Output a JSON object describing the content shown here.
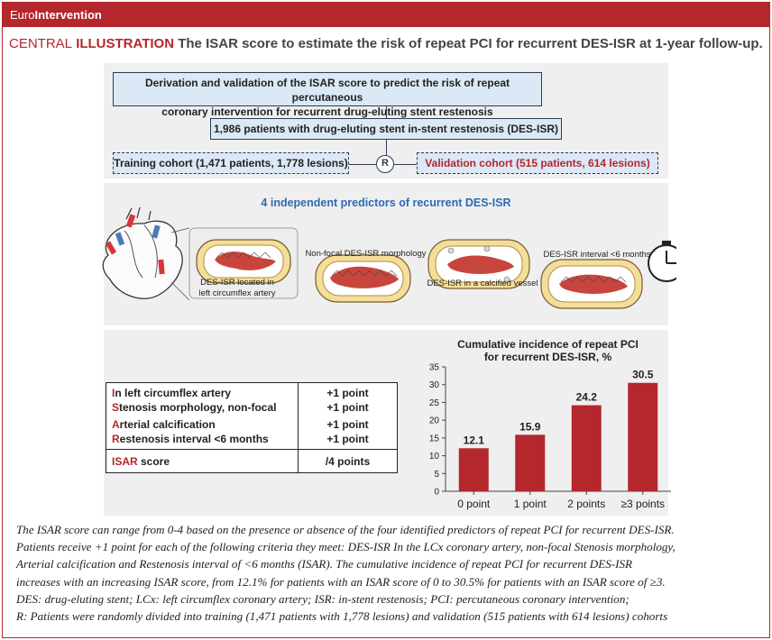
{
  "header": {
    "journal_prefix": "Euro",
    "journal_suffix": "Intervention"
  },
  "headline": {
    "label1": "CENTRAL",
    "label2": "ILLUSTRATION",
    "text": "The ISAR score to estimate the risk of repeat PCI for recurrent DES-ISR at 1-year follow-up."
  },
  "flow": {
    "title_line1": "Derivation and validation of the ISAR score to predict the risk of repeat percutaneous",
    "title_line2": "coronary intervention for recurrent drug-eluting stent restenosis",
    "patients": "1,986 patients with drug-eluting stent in-stent restenosis (DES-ISR)",
    "training": "Training cohort (1,471 patients, 1,778 lesions)",
    "randomization": "R",
    "validation": "Validation cohort (515 patients, 614 lesions)"
  },
  "predictors": {
    "title": "4 independent predictors of recurrent DES-ISR",
    "lcx_line1": "DES-ISR located in",
    "lcx_line2": "left circumflex artery",
    "nonfocal": "Non-focal DES-ISR morphology",
    "calcified": "DES-ISR in a calcified vessel",
    "interval": "DES-ISR interval <6 months"
  },
  "score": {
    "rows": [
      {
        "initial": "I",
        "rest": "n left circumflex artery",
        "points": "+1 point"
      },
      {
        "initial": "S",
        "rest": "tenosis morphology, non-focal",
        "points": "+1 point"
      },
      {
        "initial": "A",
        "rest": "rterial calcification",
        "points": "+1 point"
      },
      {
        "initial": "R",
        "rest": "estenosis interval <6 months",
        "points": "+1 point"
      }
    ],
    "total_red": "ISAR",
    "total_rest": " score",
    "total_points": "/4 points"
  },
  "chart_data": {
    "type": "bar",
    "title": "Cumulative incidence of repeat PCI for recurrent DES-ISR, %",
    "title_line1": "Cumulative incidence of repeat PCI",
    "title_line2": "for recurrent DES-ISR, %",
    "categories": [
      "0 point",
      "1 point",
      "2 points",
      "≥3 points"
    ],
    "values": [
      12.1,
      15.9,
      24.2,
      30.5
    ],
    "value_labels": [
      "12.1",
      "15.9",
      "24.2",
      "30.5"
    ],
    "ylim": [
      0,
      35
    ],
    "yticks": [
      "0",
      "5",
      "10",
      "15",
      "20",
      "25",
      "30",
      "35"
    ],
    "xlabel": "",
    "ylabel": "",
    "grid": false,
    "bar_color": "#b3272d"
  },
  "footnote": [
    "The ISAR score can range from 0-4 based on the presence or absence of the four identified predictors of repeat PCI for recurrent DES-ISR.",
    "Patients receive +1 point for each of the following criteria they meet: DES-ISR In the LCx coronary artery, non-focal Stenosis morphology,",
    "Arterial calcification and Restenosis interval of <6 months (ISAR). The cumulative incidence of repeat PCI for recurrent DES-ISR",
    "increases with an increasing ISAR score, from 12.1% for patients with an ISAR score of 0 to 30.5% for patients with an ISAR score of ≥3.",
    "DES: drug-eluting stent; LCx: left circumflex coronary artery; ISR: in-stent restenosis; PCI: percutaneous coronary intervention;",
    "R: Patients were randomly divided into training (1,471 patients with 1,778 lesions) and validation (515 patients with 614 lesions) cohorts"
  ],
  "colors": {
    "accent": "#b3272d",
    "box_fill": "#dbe8f5",
    "panel": "#efefef",
    "predictor_title": "#2f6ab0"
  }
}
